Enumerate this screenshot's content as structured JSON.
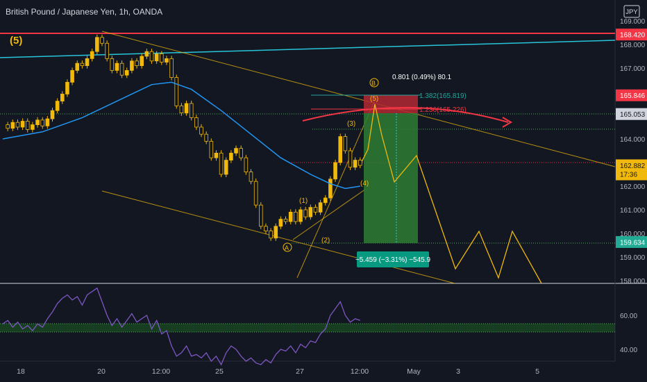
{
  "header": {
    "title": "British Pound / Japanese Yen, 1h, OANDA",
    "currency": "JPY"
  },
  "top_label": "(5)",
  "chart_data": {
    "type": "candlestick",
    "title": "British Pound / Japanese Yen, 1h, OANDA",
    "currency": "JPY",
    "price_axis": {
      "ticks": [
        "169.000",
        "168.000",
        "167.000",
        "166.000",
        "165.000",
        "164.000",
        "163.000",
        "162.000",
        "161.000",
        "160.000",
        "159.000",
        "158.000"
      ],
      "range": [
        157.9,
        169.6
      ]
    },
    "time_axis": {
      "ticks": [
        "18",
        "20",
        "12:00",
        "25",
        "27",
        "12:00",
        "May",
        "3",
        "5"
      ]
    },
    "price_tags": [
      {
        "value": "168.420",
        "bg": "#f23645",
        "fg": "#ffffff"
      },
      {
        "value": "165.846",
        "bg": "#f23645",
        "fg": "#ffffff"
      },
      {
        "value": "165.053",
        "bg": "#d1d4dc",
        "fg": "#131722"
      },
      {
        "value": "162.882",
        "sub": "17:36",
        "bg": "#f0b90b",
        "fg": "#131722"
      },
      {
        "value": "159.634",
        "bg": "#22ab94",
        "fg": "#ffffff"
      }
    ],
    "price_path": [
      [
        0,
        164.6
      ],
      [
        1,
        164.45
      ],
      [
        2,
        164.7
      ],
      [
        3,
        164.5
      ],
      [
        4,
        164.75
      ],
      [
        5,
        164.4
      ],
      [
        6,
        164.6
      ],
      [
        7,
        164.8
      ],
      [
        8,
        164.55
      ],
      [
        9,
        164.85
      ],
      [
        10,
        165.2
      ],
      [
        11,
        165.6
      ],
      [
        12,
        165.9
      ],
      [
        13,
        166.4
      ],
      [
        14,
        166.9
      ],
      [
        15,
        167.2
      ],
      [
        16,
        167.1
      ],
      [
        17,
        167.4
      ],
      [
        18,
        167.7
      ],
      [
        19,
        168.3
      ],
      [
        20,
        168.05
      ],
      [
        21,
        167.4
      ],
      [
        22,
        166.9
      ],
      [
        23,
        167.2
      ],
      [
        24,
        166.7
      ],
      [
        25,
        166.9
      ],
      [
        26,
        167.3
      ],
      [
        27,
        167.1
      ],
      [
        28,
        167.5
      ],
      [
        29,
        167.7
      ],
      [
        30,
        167.3
      ],
      [
        31,
        167.6
      ],
      [
        32,
        167.25
      ],
      [
        33,
        167.4
      ],
      [
        34,
        166.6
      ],
      [
        35,
        165.4
      ],
      [
        36,
        165.1
      ],
      [
        37,
        165.5
      ],
      [
        38,
        164.9
      ],
      [
        39,
        164.5
      ],
      [
        40,
        164.2
      ],
      [
        41,
        163.9
      ],
      [
        42,
        163.2
      ],
      [
        43,
        163.4
      ],
      [
        44,
        162.5
      ],
      [
        45,
        163.1
      ],
      [
        46,
        163.4
      ],
      [
        47,
        163.6
      ],
      [
        48,
        163.2
      ],
      [
        49,
        162.6
      ],
      [
        50,
        162.2
      ],
      [
        51,
        161.2
      ],
      [
        52,
        160.3
      ],
      [
        53,
        160.1
      ],
      [
        54,
        159.8
      ],
      [
        55,
        160.3
      ],
      [
        56,
        160.6
      ],
      [
        57,
        160.5
      ],
      [
        58,
        160.9
      ],
      [
        59,
        160.5
      ],
      [
        60,
        161.0
      ],
      [
        61,
        160.7
      ],
      [
        62,
        161.1
      ],
      [
        63,
        160.9
      ],
      [
        64,
        161.3
      ],
      [
        65,
        161.5
      ],
      [
        66,
        162.3
      ],
      [
        67,
        163.0
      ],
      [
        68,
        164.1
      ],
      [
        69,
        163.5
      ],
      [
        70,
        162.8
      ],
      [
        71,
        163.1
      ],
      [
        72,
        162.88
      ]
    ],
    "moving_average": [
      [
        0,
        164.0
      ],
      [
        8,
        164.3
      ],
      [
        16,
        164.9
      ],
      [
        24,
        165.7
      ],
      [
        30,
        166.3
      ],
      [
        34,
        166.4
      ],
      [
        38,
        166.1
      ],
      [
        44,
        165.2
      ],
      [
        50,
        164.2
      ],
      [
        56,
        163.2
      ],
      [
        62,
        162.5
      ],
      [
        66,
        162.1
      ],
      [
        69,
        161.9
      ],
      [
        72,
        162.0
      ]
    ],
    "rsi": {
      "ticks": [
        "60.00",
        "40.00"
      ],
      "values": [
        [
          0,
          55
        ],
        [
          1,
          57
        ],
        [
          2,
          53
        ],
        [
          3,
          56
        ],
        [
          4,
          52
        ],
        [
          5,
          54
        ],
        [
          6,
          51
        ],
        [
          7,
          55
        ],
        [
          8,
          53
        ],
        [
          9,
          58
        ],
        [
          10,
          62
        ],
        [
          11,
          67
        ],
        [
          12,
          70
        ],
        [
          13,
          72
        ],
        [
          14,
          69
        ],
        [
          15,
          71
        ],
        [
          16,
          66
        ],
        [
          17,
          72
        ],
        [
          18,
          74
        ],
        [
          19,
          76
        ],
        [
          20,
          68
        ],
        [
          21,
          60
        ],
        [
          22,
          54
        ],
        [
          23,
          58
        ],
        [
          24,
          53
        ],
        [
          25,
          57
        ],
        [
          26,
          61
        ],
        [
          27,
          56
        ],
        [
          28,
          58
        ],
        [
          29,
          60
        ],
        [
          30,
          52
        ],
        [
          31,
          57
        ],
        [
          32,
          49
        ],
        [
          33,
          51
        ],
        [
          34,
          42
        ],
        [
          35,
          36
        ],
        [
          36,
          38
        ],
        [
          37,
          42
        ],
        [
          38,
          36
        ],
        [
          39,
          37
        ],
        [
          40,
          35
        ],
        [
          41,
          38
        ],
        [
          42,
          33
        ],
        [
          43,
          36
        ],
        [
          44,
          31
        ],
        [
          45,
          38
        ],
        [
          46,
          42
        ],
        [
          47,
          40
        ],
        [
          48,
          36
        ],
        [
          49,
          33
        ],
        [
          50,
          35
        ],
        [
          51,
          32
        ],
        [
          52,
          31
        ],
        [
          53,
          34
        ],
        [
          54,
          32
        ],
        [
          55,
          37
        ],
        [
          56,
          40
        ],
        [
          57,
          39
        ],
        [
          58,
          42
        ],
        [
          59,
          38
        ],
        [
          60,
          43
        ],
        [
          61,
          41
        ],
        [
          62,
          45
        ],
        [
          63,
          44
        ],
        [
          64,
          49
        ],
        [
          65,
          52
        ],
        [
          66,
          60
        ],
        [
          67,
          64
        ],
        [
          68,
          68
        ],
        [
          69,
          60
        ],
        [
          70,
          56
        ],
        [
          71,
          58
        ],
        [
          72,
          57
        ]
      ]
    },
    "annotations": {
      "wave_labels": [
        "(1)",
        "(2)",
        "(3)",
        "(4)",
        "(5)",
        "A",
        "B"
      ],
      "measurement_top": "0.801 (0.49%) 80.1",
      "fib_1": "1.382(165.819)",
      "fib_2": "1.236(165.226)",
      "measurement_bottom": "−5.459 (−3.31%) −545.9"
    },
    "colors": {
      "candle": "#f0b90b",
      "moving_average": "#2196f3",
      "rsi": "#7e57c2",
      "short_risk": "#b22833",
      "short_target": "#2e7d32",
      "arc": "#f23645"
    }
  }
}
